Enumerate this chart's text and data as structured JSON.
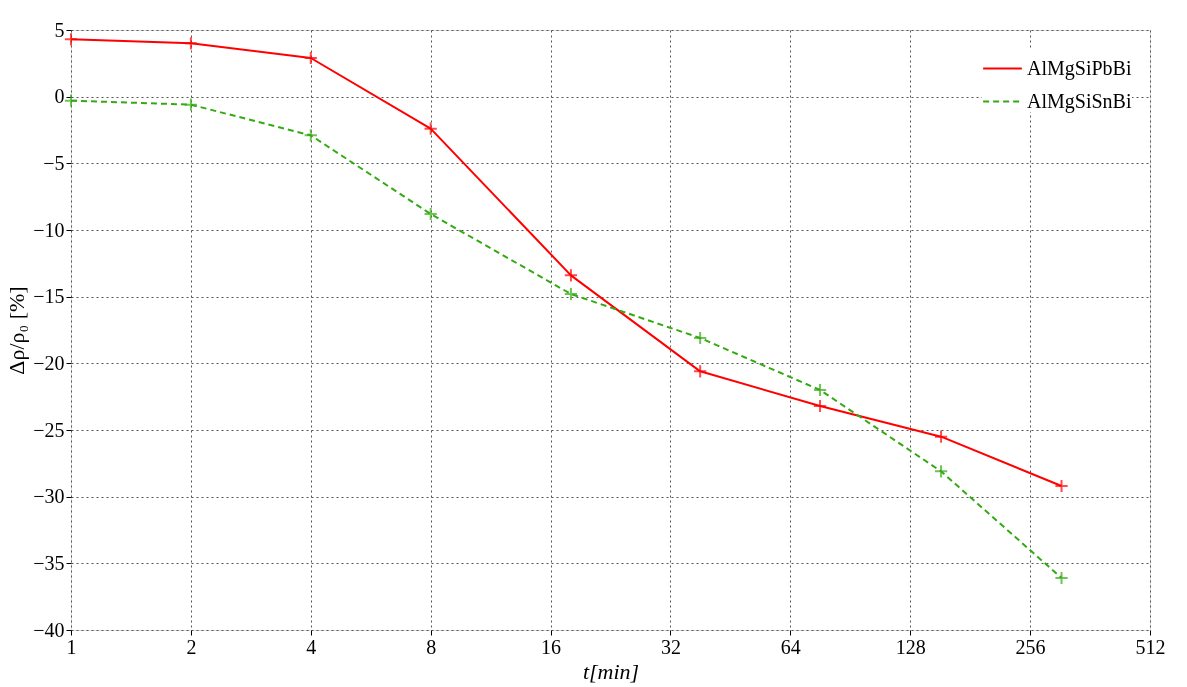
{
  "chart_data": {
    "type": "line",
    "xlabel": "t[min]",
    "ylabel": "Δρ/ρ₀ [%]",
    "log": "x",
    "xlim": [
      1,
      512
    ],
    "xticks": [
      1,
      2,
      4,
      8,
      16,
      32,
      64,
      128,
      256,
      512
    ],
    "ylim": [
      -40,
      5
    ],
    "yticks": [
      5,
      0,
      -5,
      -10,
      -15,
      -20,
      -25,
      -30,
      -35,
      -40
    ],
    "grid": true,
    "legend": "top right",
    "marker": "cross",
    "x": [
      1,
      2,
      4,
      8,
      18,
      38,
      76,
      153,
      307
    ],
    "series": [
      {
        "name": "AlMgSiPbBi",
        "color": "#ff0000",
        "line_style": "solid",
        "values": [
          4.3,
          4.0,
          2.9,
          -2.4,
          -13.4,
          -20.6,
          -23.2,
          -25.5,
          -29.2
        ]
      },
      {
        "name": "AlMgSiSnBi",
        "color": "#33aa11",
        "line_style": "dashed",
        "values": [
          -0.3,
          -0.6,
          -2.9,
          -8.8,
          -14.8,
          -18.1,
          -22.0,
          -28.1,
          -36.1
        ]
      }
    ]
  }
}
